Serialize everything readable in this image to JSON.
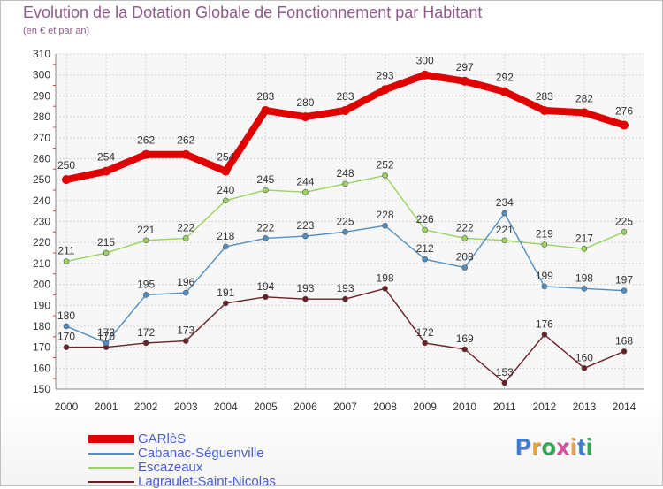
{
  "title": "Evolution de la Dotation Globale de Fonctionnement par Habitant",
  "subtitle": "(en € et par an)",
  "logo": {
    "letters": [
      "P",
      "r",
      "o",
      "x",
      "i",
      "t",
      "i"
    ],
    "colors": [
      "#3a7bd5",
      "#e8a33d",
      "#2fa84f",
      "#d94c9e",
      "#e8a33d",
      "#3a7bd5",
      "#2fa84f"
    ]
  },
  "chart_data": {
    "type": "line",
    "x": [
      "2000",
      "2001",
      "2002",
      "2003",
      "2004",
      "2005",
      "2006",
      "2007",
      "2008",
      "2009",
      "2010",
      "2011",
      "2012",
      "2013",
      "2014"
    ],
    "ylim": [
      150,
      310
    ],
    "yticks": [
      "150",
      "160",
      "170",
      "180",
      "190",
      "200",
      "210",
      "220",
      "230",
      "240",
      "250",
      "260",
      "270",
      "280",
      "290",
      "300",
      "310"
    ],
    "grid": true,
    "legend_position": "bottom-left",
    "series": [
      {
        "name": "GARlèS",
        "color": "#e00000",
        "values": [
          250,
          254,
          262,
          262,
          254,
          283,
          280,
          283,
          293,
          300,
          297,
          292,
          283,
          282,
          276
        ],
        "labels": [
          "250",
          "254",
          "262",
          "262",
          "254",
          "283",
          "280",
          "283",
          "293",
          "300",
          "297",
          "292",
          "283",
          "282",
          "276"
        ]
      },
      {
        "name": "Cabanac-Séguenville",
        "color": "#4f8fc4",
        "values": [
          180,
          172,
          195,
          196,
          218,
          222,
          223,
          225,
          228,
          212,
          208,
          234,
          199,
          198,
          197
        ],
        "labels": [
          "180",
          "172",
          "195",
          "196",
          "218",
          "222",
          "223",
          "225",
          "228",
          "212",
          "208",
          "234",
          "199",
          "198",
          "197"
        ]
      },
      {
        "name": "Escazeaux",
        "color": "#99d45e",
        "values": [
          211,
          215,
          221,
          222,
          240,
          245,
          244,
          248,
          252,
          226,
          222,
          221,
          219,
          217,
          225
        ],
        "labels": [
          "211",
          "215",
          "221",
          "222",
          "240",
          "245",
          "244",
          "248",
          "252",
          "226",
          "222",
          "221",
          "219",
          "217",
          "225"
        ]
      },
      {
        "name": "Lagraulet-Saint-Nicolas",
        "color": "#6b1f25",
        "values": [
          170,
          170,
          172,
          173,
          191,
          194,
          193,
          193,
          198,
          172,
          169,
          153,
          176,
          160,
          168
        ],
        "labels": [
          "170",
          "170",
          "172",
          "173",
          "191",
          "194",
          "193",
          "193",
          "198",
          "172",
          "169",
          "153",
          "176",
          "160",
          "168"
        ]
      }
    ]
  }
}
